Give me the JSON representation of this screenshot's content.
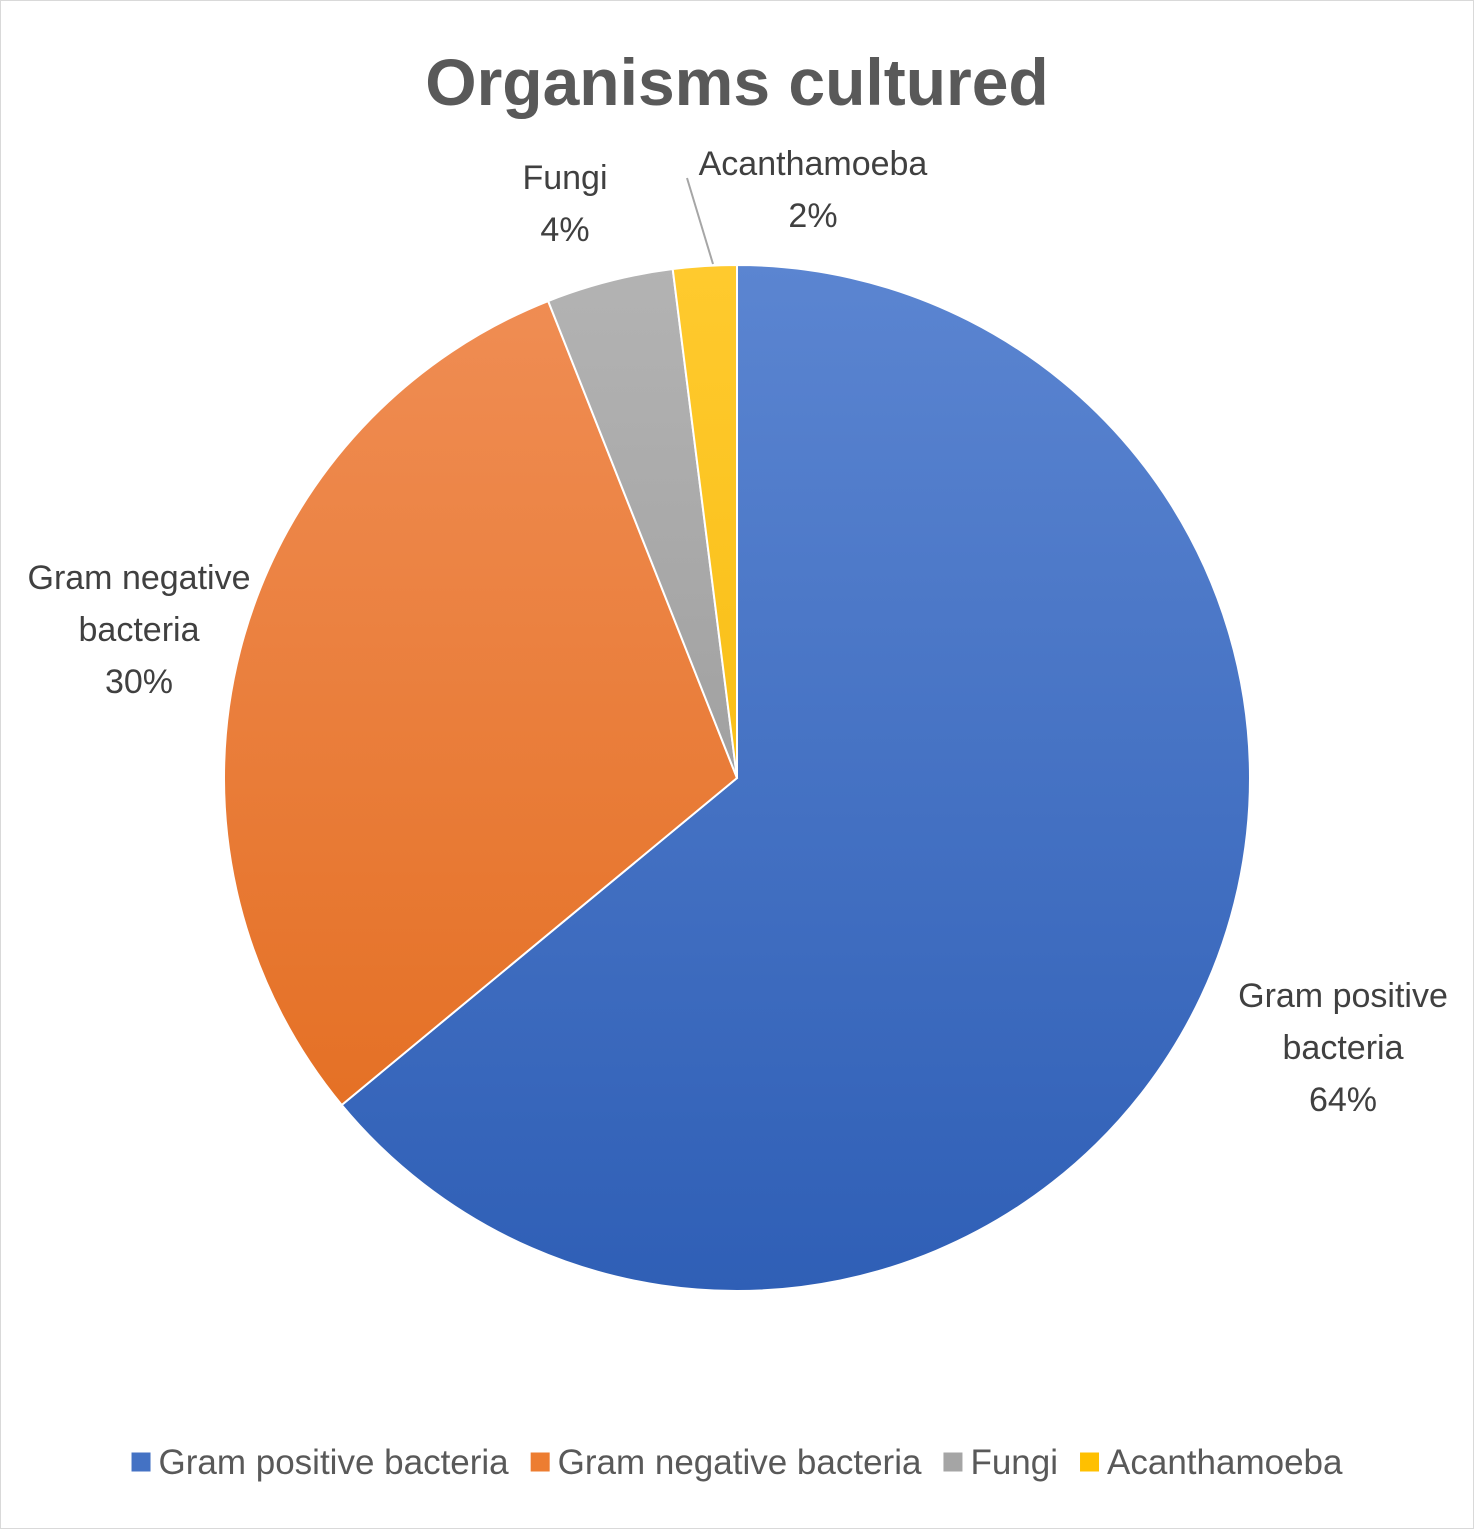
{
  "chart_data": {
    "type": "pie",
    "title": "Organisms cultured",
    "legend_position": "bottom",
    "series": [
      {
        "values": [
          64,
          30,
          4,
          2
        ]
      }
    ],
    "categories": [
      "Gram positive bacteria",
      "Gram negative bacteria",
      "Fungi",
      "Acanthamoeba"
    ],
    "slices": [
      {
        "name": "Gram positive bacteria",
        "value": 64,
        "color": "#4472C4",
        "color_light": "#5B85D1",
        "color_dark": "#2F5FB6",
        "label_lines": [
          "Gram positive",
          "bacteria"
        ],
        "percent_label": "64%"
      },
      {
        "name": "Gram negative bacteria",
        "value": 30,
        "color": "#ED7D31",
        "color_light": "#F08E55",
        "color_dark": "#E26A1B",
        "label_lines": [
          "Gram negative",
          "bacteria"
        ],
        "percent_label": "30%"
      },
      {
        "name": "Fungi",
        "value": 4,
        "color": "#A5A5A5",
        "color_light": "#B3B3B3",
        "color_dark": "#8F8F8F",
        "label_lines": [
          "Fungi"
        ],
        "percent_label": "4%"
      },
      {
        "name": "Acanthamoeba",
        "value": 2,
        "color": "#FFC000",
        "color_light": "#FFCA2E",
        "color_dark": "#F2B400",
        "label_lines": [
          "Acanthamoeba"
        ],
        "percent_label": "2%"
      }
    ]
  }
}
